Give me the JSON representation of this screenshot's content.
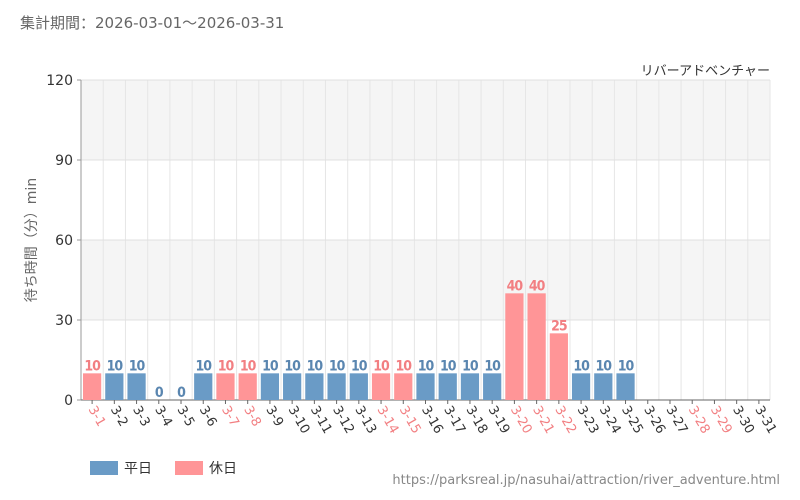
{
  "header": {
    "period": "集計期間：2026-03-01～2026-03-31"
  },
  "chart_data": {
    "type": "bar",
    "subtitle": "リバーアドベンチャー",
    "ylabel": "待ち時間（分）min",
    "ylim": [
      0,
      120
    ],
    "yticks": [
      0,
      30,
      60,
      90,
      120
    ],
    "grid": true,
    "legend_position": "bottom-left",
    "categories": [
      "3-1",
      "3-2",
      "3-3",
      "3-4",
      "3-5",
      "3-6",
      "3-7",
      "3-8",
      "3-9",
      "3-10",
      "3-11",
      "3-12",
      "3-13",
      "3-14",
      "3-15",
      "3-16",
      "3-17",
      "3-18",
      "3-19",
      "3-20",
      "3-21",
      "3-22",
      "3-23",
      "3-24",
      "3-25",
      "3-26",
      "3-27",
      "3-28",
      "3-29",
      "3-30",
      "3-31"
    ],
    "values": [
      10,
      10,
      10,
      0,
      0,
      10,
      10,
      10,
      10,
      10,
      10,
      10,
      10,
      10,
      10,
      10,
      10,
      10,
      10,
      40,
      40,
      25,
      10,
      10,
      10,
      null,
      null,
      null,
      null,
      null,
      null
    ],
    "day_type": [
      "holiday",
      "weekday",
      "weekday",
      "weekday",
      "weekday",
      "weekday",
      "holiday",
      "holiday",
      "weekday",
      "weekday",
      "weekday",
      "weekday",
      "weekday",
      "holiday",
      "holiday",
      "weekday",
      "weekday",
      "weekday",
      "weekday",
      "holiday",
      "holiday",
      "holiday",
      "weekday",
      "weekday",
      "weekday",
      "weekday",
      "weekday",
      "holiday",
      "holiday",
      "weekday",
      "weekday"
    ],
    "series": [
      {
        "name": "平日",
        "color": "#6a9bc6",
        "label_color": "#5a86b0"
      },
      {
        "name": "休日",
        "color": "#ff9597",
        "label_color": "#f27f82"
      }
    ],
    "tick_label_colors": {
      "weekday": "#333333",
      "holiday": "#f27f82"
    }
  },
  "footer": {
    "source_url": "https://parksreal.jp/nasuhai/attraction/river_adventure.html"
  }
}
